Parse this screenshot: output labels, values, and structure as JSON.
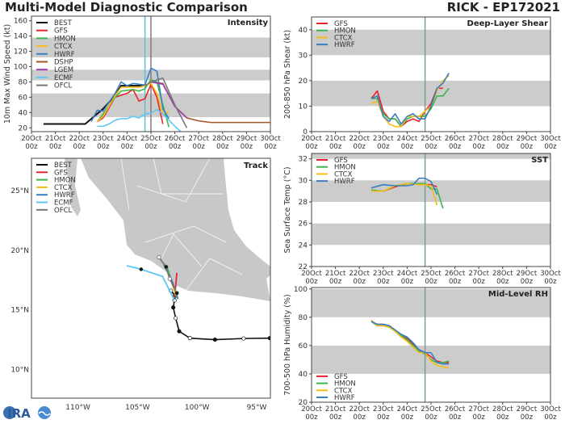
{
  "header": {
    "title": "Multi-Model Diagnostic Comparison",
    "storm": "RICK - EP172021"
  },
  "logo_text": "CIRA",
  "colors": {
    "BEST": "#111111",
    "GFS": "#e8242a",
    "HMON": "#3cb54a",
    "CTCX": "#f5bd19",
    "HWRF": "#3a7fc1",
    "DSHP": "#a5562a",
    "LGEM": "#9b3fb0",
    "ECMF": "#5bc8f5",
    "OFCL": "#777777",
    "band": "#cccccc",
    "land": "#c8c8c8",
    "vline_current": "#5bc0de",
    "vline_analysis": "#857a80",
    "vline": "#7f9a9a"
  },
  "x_ticks": [
    [
      "20Oct",
      "00z"
    ],
    [
      "21Oct",
      "00z"
    ],
    [
      "22Oct",
      "00z"
    ],
    [
      "23Oct",
      "00z"
    ],
    [
      "24Oct",
      "00z"
    ],
    [
      "25Oct",
      "00z"
    ],
    [
      "26Oct",
      "00z"
    ],
    [
      "27Oct",
      "00z"
    ],
    [
      "28Oct",
      "00z"
    ],
    [
      "29Oct",
      "00z"
    ],
    [
      "30Oct",
      "00z"
    ]
  ],
  "chart_data": [
    {
      "id": "intensity",
      "type": "line",
      "title": "Intensity",
      "ylabel": "10m Max Wind Speed (kt)",
      "xlim": [
        "20Oct 00z",
        "30Oct 00z"
      ],
      "ylim": [
        15,
        166
      ],
      "yticks": [
        20,
        40,
        60,
        80,
        100,
        120,
        140,
        160
      ],
      "bands": [
        [
          34,
          65
        ],
        [
          82,
          96
        ],
        [
          112,
          138
        ]
      ],
      "grid": false,
      "legend": "top-left",
      "vlines": [
        {
          "x": "24Oct 18z",
          "color": "vline_current"
        },
        {
          "x": "25Oct 00z",
          "color": "vline_analysis"
        }
      ],
      "series": [
        {
          "name": "BEST",
          "x": [
            "20Oct 12z",
            "22Oct 06z",
            "23Oct 00z",
            "23Oct 12z",
            "23Oct 18z",
            "24Oct 12z",
            "24Oct 18z"
          ],
          "y": [
            25,
            25,
            45,
            62,
            75,
            75,
            75
          ]
        },
        {
          "name": "GFS",
          "x": [
            "22Oct 18z",
            "23Oct 00z",
            "23Oct 12z",
            "24Oct 00z",
            "24Oct 06z",
            "24Oct 12z",
            "24Oct 18z",
            "25Oct 00z",
            "25Oct 06z",
            "25Oct 12z"
          ],
          "y": [
            28,
            33,
            60,
            65,
            70,
            55,
            58,
            77,
            60,
            25
          ]
        },
        {
          "name": "HMON",
          "x": [
            "22Oct 18z",
            "23Oct 00z",
            "23Oct 12z",
            "23Oct 18z",
            "24Oct 06z",
            "24Oct 12z",
            "24Oct 18z",
            "25Oct 00z",
            "25Oct 06z",
            "25Oct 12z",
            "25Oct 18z"
          ],
          "y": [
            28,
            38,
            60,
            68,
            70,
            68,
            71,
            83,
            80,
            50,
            21
          ]
        },
        {
          "name": "CTCX",
          "x": [
            "22Oct 18z",
            "23Oct 00z",
            "23Oct 12z",
            "23Oct 18z",
            "24Oct 12z",
            "24Oct 18z",
            "25Oct 00z",
            "25Oct 06z",
            "25Oct 12z",
            "25Oct 18z"
          ],
          "y": [
            28,
            35,
            62,
            73,
            73,
            75,
            78,
            65,
            38,
            41
          ]
        },
        {
          "name": "HWRF",
          "x": [
            "22Oct 12z",
            "22Oct 18z",
            "23Oct 00z",
            "23Oct 12z",
            "23Oct 18z",
            "24Oct 00z",
            "24Oct 06z",
            "24Oct 18z",
            "25Oct 00z",
            "25Oct 06z",
            "25Oct 12z",
            "25Oct 18z"
          ],
          "y": [
            28,
            43,
            42,
            65,
            80,
            75,
            78,
            76,
            98,
            94,
            45,
            32
          ]
        },
        {
          "name": "DSHP",
          "x": [
            "25Oct 00z",
            "25Oct 12z",
            "26Oct 00z",
            "26Oct 12z",
            "27Oct 00z",
            "27Oct 12z",
            "30Oct 00z"
          ],
          "y": [
            80,
            78,
            48,
            33,
            29,
            27,
            27
          ]
        },
        {
          "name": "LGEM",
          "x": [
            "25Oct 00z",
            "25Oct 12z",
            "26Oct 00z",
            "26Oct 12z"
          ],
          "y": [
            80,
            77,
            48,
            33
          ]
        },
        {
          "name": "ECMF",
          "x": [
            "22Oct 18z",
            "23Oct 00z",
            "23Oct 06z",
            "23Oct 12z",
            "23Oct 18z",
            "24Oct 00z",
            "24Oct 06z",
            "24Oct 12z",
            "24Oct 18z",
            "25Oct 00z",
            "25Oct 06z",
            "25Oct 12z",
            "26Oct 00z",
            "26Oct 06z"
          ],
          "y": [
            22,
            22,
            25,
            30,
            32,
            32,
            35,
            33,
            38,
            39,
            44,
            38,
            22,
            15
          ]
        },
        {
          "name": "OFCL",
          "x": [
            "24Oct 18z",
            "25Oct 00z",
            "25Oct 12z",
            "26Oct 00z",
            "26Oct 12z"
          ],
          "y": [
            75,
            80,
            85,
            50,
            20
          ]
        }
      ]
    },
    {
      "id": "shear",
      "type": "line",
      "title": "Deep-Layer Shear",
      "ylabel": "200-850 hPa Shear (kt)",
      "xlim": [
        "20Oct 00z",
        "30Oct 00z"
      ],
      "ylim": [
        0,
        45
      ],
      "yticks": [
        0,
        10,
        20,
        30,
        40
      ],
      "bands": [
        [
          10,
          20
        ],
        [
          30,
          40
        ]
      ],
      "grid": false,
      "legend": "top-left",
      "vlines": [
        {
          "x": "24Oct 18z",
          "color": "vline"
        }
      ],
      "series": [
        {
          "name": "GFS",
          "x": [
            "22Oct 12z",
            "22Oct 18z",
            "23Oct 00z",
            "23Oct 06z",
            "23Oct 12z",
            "23Oct 18z",
            "24Oct 00z",
            "24Oct 06z",
            "24Oct 12z",
            "24Oct 18z",
            "25Oct 00z",
            "25Oct 06z",
            "25Oct 12z"
          ],
          "y": [
            13,
            16,
            8,
            5,
            5,
            2,
            4,
            5,
            4,
            8,
            11,
            17,
            17
          ]
        },
        {
          "name": "HMON",
          "x": [
            "22Oct 12z",
            "22Oct 18z",
            "23Oct 00z",
            "23Oct 06z",
            "23Oct 12z",
            "23Oct 18z",
            "24Oct 00z",
            "24Oct 06z",
            "24Oct 12z",
            "24Oct 18z",
            "25Oct 00z",
            "25Oct 06z",
            "25Oct 12z",
            "25Oct 18z"
          ],
          "y": [
            13,
            13,
            7,
            5,
            5,
            2,
            5,
            6,
            6,
            6,
            9,
            14,
            14,
            17
          ]
        },
        {
          "name": "CTCX",
          "x": [
            "22Oct 12z",
            "22Oct 18z",
            "23Oct 00z",
            "23Oct 06z",
            "23Oct 12z",
            "23Oct 18z",
            "24Oct 00z",
            "24Oct 06z",
            "24Oct 12z",
            "24Oct 18z",
            "25Oct 00z",
            "25Oct 06z",
            "25Oct 12z",
            "25Oct 18z"
          ],
          "y": [
            11,
            12,
            6,
            3,
            2,
            2,
            6,
            6,
            6,
            8,
            10,
            16,
            20,
            22
          ]
        },
        {
          "name": "HWRF",
          "x": [
            "22Oct 12z",
            "22Oct 18z",
            "23Oct 00z",
            "23Oct 06z",
            "23Oct 12z",
            "23Oct 18z",
            "24Oct 00z",
            "24Oct 06z",
            "24Oct 12z",
            "24Oct 18z",
            "25Oct 00z",
            "25Oct 06z",
            "25Oct 12z",
            "25Oct 18z"
          ],
          "y": [
            13,
            14,
            6,
            4,
            7,
            3,
            6,
            7,
            5,
            5,
            10,
            17,
            19,
            23
          ]
        }
      ]
    },
    {
      "id": "sst",
      "type": "line",
      "title": "SST",
      "ylabel": "Sea Surface Temp (°C)",
      "xlim": [
        "20Oct 00z",
        "30Oct 00z"
      ],
      "ylim": [
        22,
        32.5
      ],
      "yticks": [
        22,
        24,
        26,
        28,
        30,
        32
      ],
      "bands": [
        [
          24,
          26
        ],
        [
          28,
          30
        ],
        [
          32,
          32.5
        ]
      ],
      "grid": false,
      "legend": "top-left",
      "vlines": [
        {
          "x": "24Oct 18z",
          "color": "vline"
        }
      ],
      "series": [
        {
          "name": "GFS",
          "x": [
            "22Oct 12z",
            "23Oct 00z",
            "23Oct 12z",
            "24Oct 00z",
            "24Oct 12z",
            "24Oct 18z",
            "25Oct 00z",
            "25Oct 06z"
          ],
          "y": [
            29.0,
            29.0,
            29.4,
            29.7,
            29.7,
            29.6,
            29.6,
            29.4
          ]
        },
        {
          "name": "HMON",
          "x": [
            "22Oct 12z",
            "23Oct 00z",
            "23Oct 12z",
            "24Oct 00z",
            "24Oct 12z",
            "24Oct 18z",
            "25Oct 00z",
            "25Oct 06z",
            "25Oct 12z"
          ],
          "y": [
            29.1,
            29.0,
            29.5,
            29.7,
            29.7,
            29.7,
            29.2,
            29.2,
            27.4
          ]
        },
        {
          "name": "CTCX",
          "x": [
            "22Oct 12z",
            "23Oct 00z",
            "23Oct 12z",
            "24Oct 00z",
            "24Oct 12z",
            "24Oct 18z",
            "25Oct 00z",
            "25Oct 06z"
          ],
          "y": [
            29.0,
            29.0,
            29.5,
            29.7,
            29.6,
            29.6,
            29.5,
            27.7
          ]
        },
        {
          "name": "HWRF",
          "x": [
            "22Oct 12z",
            "23Oct 00z",
            "23Oct 12z",
            "24Oct 00z",
            "24Oct 06z",
            "24Oct 12z",
            "24Oct 18z",
            "25Oct 00z",
            "25Oct 06z"
          ],
          "y": [
            29.3,
            29.6,
            29.5,
            29.5,
            29.6,
            30.2,
            30.2,
            29.9,
            28.7
          ]
        }
      ]
    },
    {
      "id": "rh",
      "type": "line",
      "title": "Mid-Level RH",
      "ylabel": "700-500 hPa Humidity (%)",
      "xlim": [
        "20Oct 00z",
        "30Oct 00z"
      ],
      "ylim": [
        20,
        101
      ],
      "yticks": [
        20,
        40,
        60,
        80,
        100
      ],
      "bands": [
        [
          40,
          60
        ],
        [
          80,
          100
        ]
      ],
      "grid": false,
      "legend": "bottom-left",
      "vlines": [
        {
          "x": "24Oct 18z",
          "color": "vline"
        }
      ],
      "series": [
        {
          "name": "GFS",
          "x": [
            "22Oct 12z",
            "22Oct 18z",
            "23Oct 00z",
            "23Oct 06z",
            "23Oct 12z",
            "23Oct 18z",
            "24Oct 00z",
            "24Oct 06z",
            "24Oct 12z",
            "24Oct 18z",
            "25Oct 00z",
            "25Oct 06z",
            "25Oct 12z",
            "25Oct 18z"
          ],
          "y": [
            77,
            75,
            75,
            74,
            71,
            67,
            65,
            61,
            57,
            55,
            52,
            49,
            48,
            48
          ]
        },
        {
          "name": "HMON",
          "x": [
            "22Oct 12z",
            "22Oct 18z",
            "23Oct 00z",
            "23Oct 06z",
            "23Oct 12z",
            "23Oct 18z",
            "24Oct 00z",
            "24Oct 06z",
            "24Oct 12z",
            "24Oct 18z",
            "25Oct 00z",
            "25Oct 06z",
            "25Oct 12z",
            "25Oct 18z"
          ],
          "y": [
            77,
            74,
            74,
            73,
            70,
            67,
            64,
            60,
            56,
            54,
            50,
            48,
            48,
            49
          ]
        },
        {
          "name": "CTCX",
          "x": [
            "22Oct 12z",
            "22Oct 18z",
            "23Oct 00z",
            "23Oct 06z",
            "23Oct 12z",
            "23Oct 18z",
            "24Oct 00z",
            "24Oct 06z",
            "24Oct 12z",
            "24Oct 18z",
            "25Oct 00z",
            "25Oct 06z",
            "25Oct 12z",
            "25Oct 18z"
          ],
          "y": [
            78,
            74,
            74,
            73,
            70,
            66,
            63,
            59,
            55,
            55,
            49,
            46,
            45,
            44
          ]
        },
        {
          "name": "HWRF",
          "x": [
            "22Oct 12z",
            "22Oct 18z",
            "23Oct 00z",
            "23Oct 06z",
            "23Oct 12z",
            "23Oct 18z",
            "24Oct 00z",
            "24Oct 06z",
            "24Oct 12z",
            "24Oct 18z",
            "25Oct 00z",
            "25Oct 06z",
            "25Oct 12z",
            "25Oct 18z"
          ],
          "y": [
            77,
            75,
            75,
            74,
            71,
            68,
            66,
            62,
            57,
            55,
            55,
            48,
            47,
            47
          ]
        }
      ]
    },
    {
      "id": "track",
      "type": "scatter",
      "title": "Track",
      "legend": "top-left",
      "xlim": [
        "113.9°W",
        "93.9°W"
      ],
      "ylim": [
        "7.6°N",
        "27.7°N"
      ],
      "lon_ticks": [
        {
          "v": -110,
          "label": "110°W"
        },
        {
          "v": -105,
          "label": "105°W"
        },
        {
          "v": -100,
          "label": "100°W"
        },
        {
          "v": -95,
          "label": "95°W"
        }
      ],
      "lat_ticks": [
        {
          "v": 25,
          "label": "25°N"
        },
        {
          "v": 20,
          "label": "20°N"
        },
        {
          "v": 15,
          "label": "15°N"
        },
        {
          "v": 10,
          "label": "10°N"
        }
      ],
      "legend_entries": [
        "BEST",
        "GFS",
        "HMON",
        "CTCX",
        "HWRF",
        "ECMF",
        "OFCL"
      ],
      "series": [
        {
          "name": "BEST",
          "lon": [
            -93.9,
            -96.1,
            -98.5,
            -100.6,
            -101.5,
            -101.8,
            -102.0,
            -101.9,
            -101.85,
            -102.2
          ],
          "lat": [
            12.63,
            12.6,
            12.5,
            12.63,
            13.2,
            14.3,
            15.2,
            15.8,
            16.2,
            16.6
          ]
        },
        {
          "name": "GFS",
          "lon": [
            -101.9,
            -101.8,
            -101.7
          ],
          "lat": [
            16.0,
            17.0,
            18.1
          ]
        },
        {
          "name": "HMON",
          "lon": [
            -101.7,
            -102.0,
            -102.5
          ],
          "lat": [
            16.0,
            17.0,
            18.5
          ]
        },
        {
          "name": "CTCX",
          "lon": [
            -101.8,
            -102.1,
            -102.7
          ],
          "lat": [
            16.2,
            17.2,
            18.7
          ]
        },
        {
          "name": "HWRF",
          "lon": [
            -101.6,
            -102.0,
            -102.8
          ],
          "lat": [
            15.9,
            17.2,
            18.8
          ]
        },
        {
          "name": "ECMF",
          "lon": [
            -101.9,
            -102.9,
            -104.7,
            -105.9
          ],
          "lat": [
            15.8,
            17.8,
            18.4,
            18.7
          ]
        },
        {
          "name": "OFCL",
          "lon": [
            -101.7,
            -102.3,
            -102.6,
            -103.2
          ],
          "lat": [
            16.4,
            17.6,
            18.6,
            19.4
          ]
        }
      ]
    }
  ]
}
